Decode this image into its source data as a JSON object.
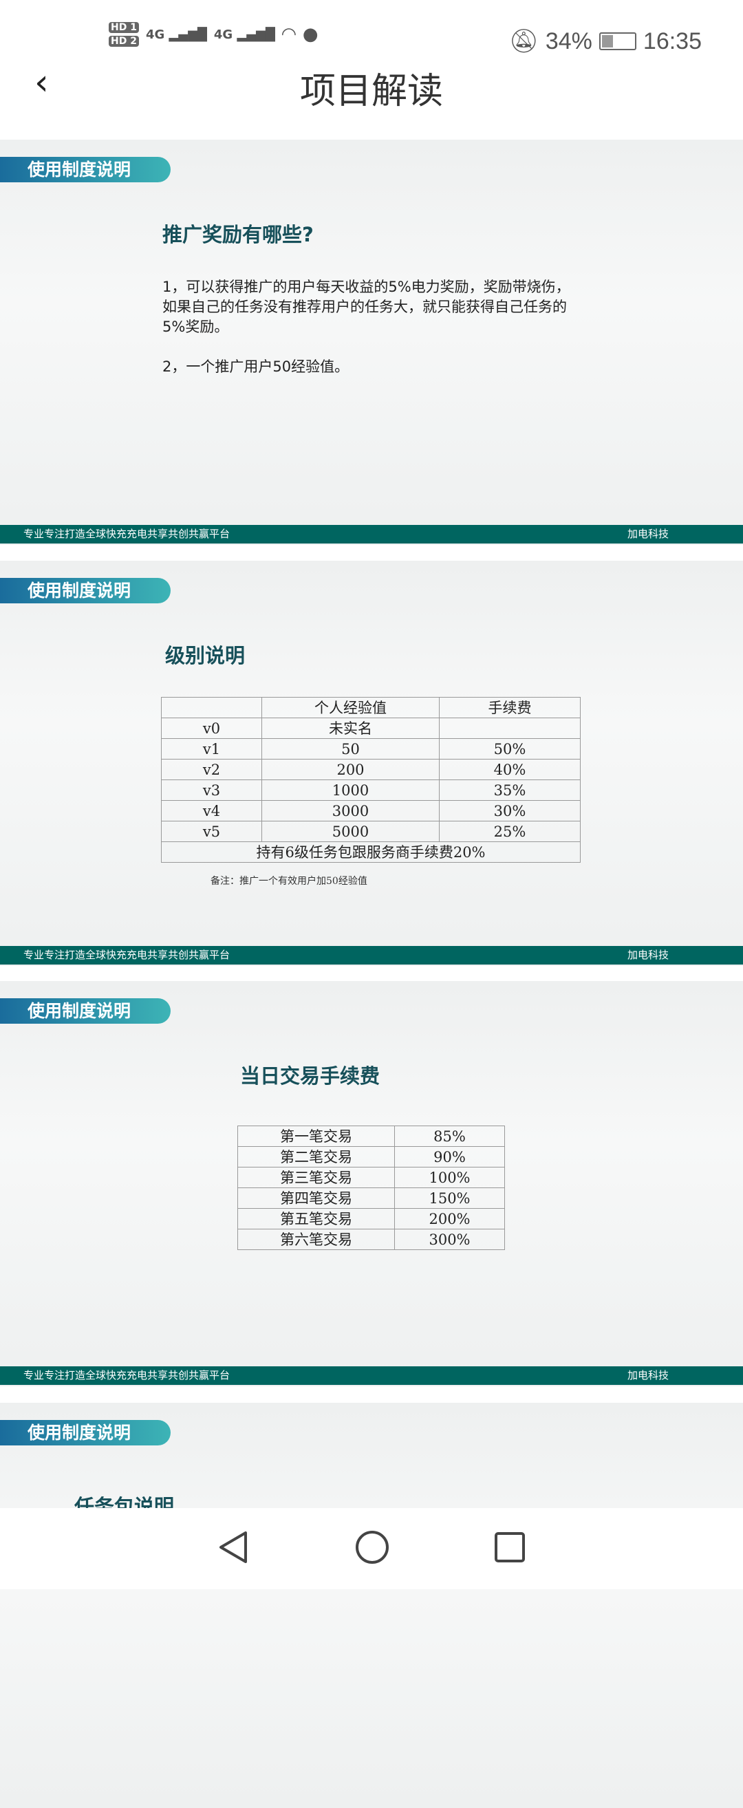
{
  "status_bar": {
    "sim1": "HD 1",
    "sim2": "HD 2",
    "net1": "4G",
    "net2": "4G",
    "battery": "34%",
    "time": "16:35"
  },
  "header": {
    "title": "项目解读"
  },
  "footer": {
    "slogan": "专业专注打造全球快充充电共享共创共赢平台",
    "brand": "加电科技"
  },
  "slides": [
    {
      "tag": "使用制度说明",
      "title": "推广奖励有哪些?",
      "paragraphs": [
        "1，可以获得推广的用户每天收益的5%电力奖励，奖励带烧伤，如果自己的任务没有推荐用户的任务大，就只能获得自己任务的5%奖励。",
        "2，一个推广用户50经验值。"
      ]
    },
    {
      "tag": "使用制度说明",
      "title": "级别说明",
      "table": {
        "headers": [
          "",
          "个人经验值",
          "手续费"
        ],
        "rows": [
          [
            "v0",
            "未实名",
            ""
          ],
          [
            "v1",
            "50",
            "50%"
          ],
          [
            "v2",
            "200",
            "40%"
          ],
          [
            "v3",
            "1000",
            "35%"
          ],
          [
            "v4",
            "3000",
            "30%"
          ],
          [
            "v5",
            "5000",
            "25%"
          ]
        ],
        "footer": "持有6级任务包跟服务商手续费20%"
      },
      "note": "备注：推广一个有效用户加50经验值"
    },
    {
      "tag": "使用制度说明",
      "title": "当日交易手续费",
      "table": {
        "rows": [
          [
            "第一笔交易",
            "85%"
          ],
          [
            "第二笔交易",
            "90%"
          ],
          [
            "第三笔交易",
            "100%"
          ],
          [
            "第四笔交易",
            "150%"
          ],
          [
            "第五笔交易",
            "200%"
          ],
          [
            "第六笔交易",
            "300%"
          ]
        ]
      }
    },
    {
      "tag": "使用制度说明",
      "title": "任务包说明"
    }
  ]
}
